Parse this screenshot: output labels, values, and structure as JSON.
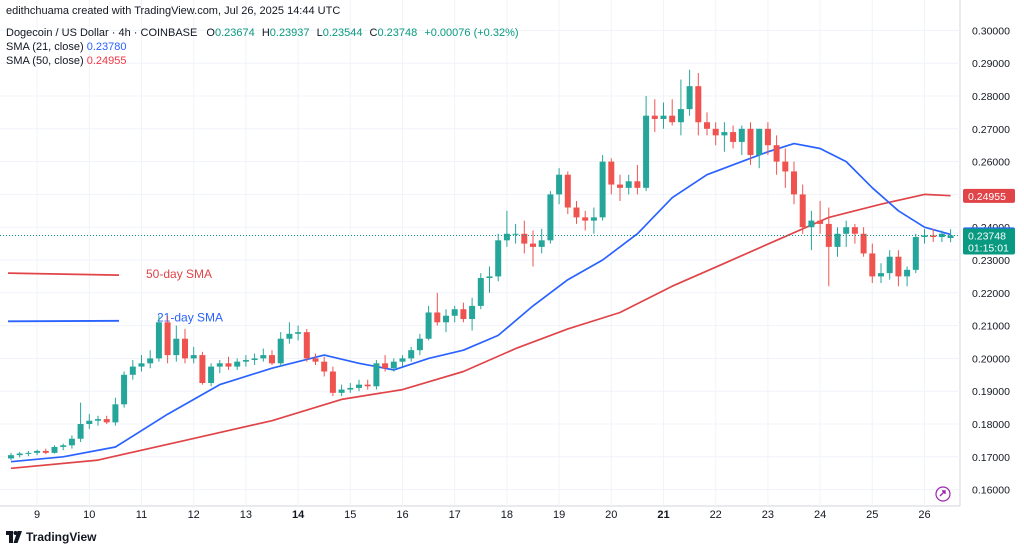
{
  "header": {
    "author_line": "edithchuama created with TradingView.com, Jul 26, 2025 14:44 UTC",
    "symbol": "Dogecoin / US Dollar · 4h · COINBASE",
    "ohlc": {
      "o_label": "O",
      "o": "0.23674",
      "h_label": "H",
      "h": "0.23937",
      "l_label": "L",
      "l": "0.23544",
      "c_label": "C",
      "c": "0.23748",
      "change": "+0.00076 (+0.32%)"
    },
    "sma21_label": "SMA (21, close)",
    "sma21_value": "0.23780",
    "sma50_label": "SMA (50, close)",
    "sma50_value": "0.24955"
  },
  "footer": {
    "brand": "TradingView",
    "brand_icon": "tradingview-logo-icon"
  },
  "colors": {
    "up": "#26a69a",
    "down": "#ef5350",
    "sma21": "#2962ff",
    "sma50": "#e04448",
    "grid": "#f0f3fa",
    "axis_text": "#131722",
    "last_price": "#089981"
  },
  "chart_data": {
    "type": "candlestick",
    "y_axis": {
      "min": 0.155,
      "max": 0.305,
      "ticks": [
        "0.30000",
        "0.29000",
        "0.28000",
        "0.27000",
        "0.26000",
        "0.25000",
        "0.24000",
        "0.23000",
        "0.22000",
        "0.21000",
        "0.20000",
        "0.19000",
        "0.18000",
        "0.17000",
        "0.16000"
      ]
    },
    "x_axis": {
      "ticks": [
        {
          "label": "9",
          "bar": 3
        },
        {
          "label": "10",
          "bar": 9
        },
        {
          "label": "11",
          "bar": 15
        },
        {
          "label": "12",
          "bar": 21
        },
        {
          "label": "13",
          "bar": 27
        },
        {
          "label": "14",
          "bar": 33
        },
        {
          "label": "15",
          "bar": 39
        },
        {
          "label": "16",
          "bar": 45
        },
        {
          "label": "17",
          "bar": 51
        },
        {
          "label": "18",
          "bar": 57
        },
        {
          "label": "19",
          "bar": 63
        },
        {
          "label": "20",
          "bar": 69
        },
        {
          "label": "21",
          "bar": 75
        },
        {
          "label": "22",
          "bar": 81
        },
        {
          "label": "23",
          "bar": 87
        },
        {
          "label": "24",
          "bar": 93
        },
        {
          "label": "25",
          "bar": 99
        },
        {
          "label": "26",
          "bar": 105
        }
      ],
      "bold": [
        "14",
        "21"
      ]
    },
    "grid": true,
    "price_labels": {
      "sma50": "0.24955",
      "sma21": "0.23780",
      "last": "0.23748",
      "countdown": "01:15:01"
    },
    "annotations": [
      {
        "text": "50-day SMA",
        "color": "#e04448"
      },
      {
        "text": "21-day SMA",
        "color": "#2962ff"
      }
    ],
    "legend_lines": [
      {
        "series": "sma50",
        "value": 0.226
      },
      {
        "series": "sma21",
        "value": 0.2113
      }
    ],
    "candles": [
      [
        0.1695,
        0.1712,
        0.169,
        0.1705
      ],
      [
        0.1705,
        0.1715,
        0.1698,
        0.171
      ],
      [
        0.171,
        0.1718,
        0.1702,
        0.1712
      ],
      [
        0.1712,
        0.1722,
        0.1705,
        0.1718
      ],
      [
        0.1718,
        0.1725,
        0.1708,
        0.1712
      ],
      [
        0.1712,
        0.1735,
        0.171,
        0.173
      ],
      [
        0.173,
        0.174,
        0.172,
        0.1735
      ],
      [
        0.1735,
        0.1765,
        0.1725,
        0.1755
      ],
      [
        0.1755,
        0.1865,
        0.1745,
        0.18
      ],
      [
        0.18,
        0.183,
        0.1785,
        0.181
      ],
      [
        0.181,
        0.1825,
        0.1795,
        0.1815
      ],
      [
        0.1815,
        0.1825,
        0.18,
        0.1805
      ],
      [
        0.1805,
        0.188,
        0.1795,
        0.186
      ],
      [
        0.186,
        0.196,
        0.185,
        0.195
      ],
      [
        0.195,
        0.1995,
        0.1935,
        0.1975
      ],
      [
        0.1975,
        0.201,
        0.196,
        0.1985
      ],
      [
        0.1985,
        0.2025,
        0.197,
        0.2
      ],
      [
        0.2,
        0.213,
        0.199,
        0.211
      ],
      [
        0.211,
        0.213,
        0.1985,
        0.201
      ],
      [
        0.201,
        0.21,
        0.199,
        0.206
      ],
      [
        0.206,
        0.209,
        0.1985,
        0.2
      ],
      [
        0.2,
        0.2035,
        0.1985,
        0.201
      ],
      [
        0.201,
        0.202,
        0.192,
        0.1925
      ],
      [
        0.1925,
        0.1985,
        0.1915,
        0.1975
      ],
      [
        0.1975,
        0.1995,
        0.1955,
        0.1985
      ],
      [
        0.1985,
        0.2005,
        0.1965,
        0.1975
      ],
      [
        0.1975,
        0.2,
        0.1965,
        0.199
      ],
      [
        0.199,
        0.201,
        0.1975,
        0.1995
      ],
      [
        0.1995,
        0.2015,
        0.198,
        0.2
      ],
      [
        0.2,
        0.203,
        0.199,
        0.201
      ],
      [
        0.201,
        0.2025,
        0.198,
        0.1985
      ],
      [
        0.1985,
        0.208,
        0.1975,
        0.206
      ],
      [
        0.206,
        0.211,
        0.2045,
        0.2075
      ],
      [
        0.2075,
        0.21,
        0.2055,
        0.208
      ],
      [
        0.208,
        0.209,
        0.199,
        0.2
      ],
      [
        0.2,
        0.2015,
        0.198,
        0.199
      ],
      [
        0.199,
        0.2005,
        0.1945,
        0.196
      ],
      [
        0.196,
        0.1975,
        0.1885,
        0.1895
      ],
      [
        0.1895,
        0.192,
        0.1885,
        0.1905
      ],
      [
        0.1905,
        0.1925,
        0.1895,
        0.191
      ],
      [
        0.191,
        0.1935,
        0.19,
        0.192
      ],
      [
        0.192,
        0.1935,
        0.1905,
        0.1915
      ],
      [
        0.1915,
        0.1995,
        0.1905,
        0.1985
      ],
      [
        0.1985,
        0.201,
        0.196,
        0.197
      ],
      [
        0.197,
        0.2,
        0.196,
        0.199
      ],
      [
        0.199,
        0.201,
        0.1975,
        0.2
      ],
      [
        0.2,
        0.2035,
        0.199,
        0.2025
      ],
      [
        0.2025,
        0.2075,
        0.201,
        0.206
      ],
      [
        0.206,
        0.216,
        0.2055,
        0.214
      ],
      [
        0.214,
        0.22,
        0.21,
        0.211
      ],
      [
        0.211,
        0.215,
        0.208,
        0.213
      ],
      [
        0.213,
        0.216,
        0.211,
        0.215
      ],
      [
        0.215,
        0.217,
        0.211,
        0.212
      ],
      [
        0.212,
        0.2185,
        0.2085,
        0.216
      ],
      [
        0.216,
        0.226,
        0.215,
        0.2245
      ],
      [
        0.2245,
        0.228,
        0.22,
        0.225
      ],
      [
        0.225,
        0.238,
        0.2235,
        0.236
      ],
      [
        0.236,
        0.245,
        0.234,
        0.238
      ],
      [
        0.238,
        0.241,
        0.235,
        0.238
      ],
      [
        0.238,
        0.242,
        0.232,
        0.235
      ],
      [
        0.235,
        0.239,
        0.228,
        0.234
      ],
      [
        0.234,
        0.2395,
        0.232,
        0.236
      ],
      [
        0.236,
        0.251,
        0.235,
        0.25
      ],
      [
        0.25,
        0.258,
        0.247,
        0.256
      ],
      [
        0.256,
        0.257,
        0.244,
        0.246
      ],
      [
        0.246,
        0.248,
        0.241,
        0.243
      ],
      [
        0.243,
        0.245,
        0.239,
        0.242
      ],
      [
        0.242,
        0.246,
        0.238,
        0.243
      ],
      [
        0.243,
        0.262,
        0.242,
        0.26
      ],
      [
        0.26,
        0.261,
        0.25,
        0.253
      ],
      [
        0.253,
        0.256,
        0.248,
        0.252
      ],
      [
        0.252,
        0.256,
        0.25,
        0.254
      ],
      [
        0.254,
        0.259,
        0.25,
        0.252
      ],
      [
        0.252,
        0.28,
        0.251,
        0.274
      ],
      [
        0.274,
        0.279,
        0.269,
        0.273
      ],
      [
        0.273,
        0.278,
        0.27,
        0.274
      ],
      [
        0.274,
        0.279,
        0.271,
        0.272
      ],
      [
        0.272,
        0.285,
        0.268,
        0.276
      ],
      [
        0.276,
        0.288,
        0.274,
        0.283
      ],
      [
        0.283,
        0.287,
        0.268,
        0.272
      ],
      [
        0.272,
        0.275,
        0.268,
        0.27
      ],
      [
        0.27,
        0.272,
        0.265,
        0.268
      ],
      [
        0.268,
        0.272,
        0.263,
        0.269
      ],
      [
        0.269,
        0.271,
        0.264,
        0.266
      ],
      [
        0.266,
        0.271,
        0.262,
        0.27
      ],
      [
        0.27,
        0.272,
        0.259,
        0.262
      ],
      [
        0.262,
        0.27,
        0.258,
        0.27
      ],
      [
        0.27,
        0.272,
        0.262,
        0.265
      ],
      [
        0.265,
        0.268,
        0.256,
        0.26
      ],
      [
        0.26,
        0.264,
        0.252,
        0.257
      ],
      [
        0.257,
        0.26,
        0.247,
        0.25
      ],
      [
        0.25,
        0.253,
        0.238,
        0.24
      ],
      [
        0.24,
        0.245,
        0.233,
        0.242
      ],
      [
        0.242,
        0.248,
        0.238,
        0.241
      ],
      [
        0.241,
        0.246,
        0.222,
        0.234
      ],
      [
        0.234,
        0.24,
        0.231,
        0.238
      ],
      [
        0.238,
        0.242,
        0.234,
        0.24
      ],
      [
        0.24,
        0.241,
        0.235,
        0.238
      ],
      [
        0.238,
        0.24,
        0.231,
        0.232
      ],
      [
        0.232,
        0.235,
        0.223,
        0.225
      ],
      [
        0.225,
        0.229,
        0.223,
        0.226
      ],
      [
        0.226,
        0.233,
        0.224,
        0.231
      ],
      [
        0.231,
        0.233,
        0.222,
        0.225
      ],
      [
        0.225,
        0.228,
        0.222,
        0.227
      ],
      [
        0.227,
        0.238,
        0.226,
        0.237
      ],
      [
        0.237,
        0.2395,
        0.235,
        0.2375
      ],
      [
        0.2375,
        0.2395,
        0.2355,
        0.237
      ],
      [
        0.237,
        0.239,
        0.2355,
        0.238
      ],
      [
        0.2367,
        0.2394,
        0.2354,
        0.2375
      ]
    ],
    "sma21": [
      [
        0,
        0.1685
      ],
      [
        6,
        0.17
      ],
      [
        12,
        0.173
      ],
      [
        18,
        0.183
      ],
      [
        24,
        0.192
      ],
      [
        30,
        0.197
      ],
      [
        36,
        0.201
      ],
      [
        40,
        0.1985
      ],
      [
        44,
        0.1965
      ],
      [
        48,
        0.2
      ],
      [
        52,
        0.2025
      ],
      [
        56,
        0.207
      ],
      [
        60,
        0.216
      ],
      [
        64,
        0.224
      ],
      [
        68,
        0.23
      ],
      [
        72,
        0.238
      ],
      [
        76,
        0.249
      ],
      [
        80,
        0.256
      ],
      [
        84,
        0.26
      ],
      [
        87,
        0.263
      ],
      [
        90,
        0.2655
      ],
      [
        93,
        0.264
      ],
      [
        96,
        0.26
      ],
      [
        99,
        0.252
      ],
      [
        102,
        0.245
      ],
      [
        105,
        0.24
      ],
      [
        108,
        0.2378
      ]
    ],
    "sma50": [
      [
        0,
        0.1665
      ],
      [
        10,
        0.169
      ],
      [
        20,
        0.175
      ],
      [
        30,
        0.181
      ],
      [
        38,
        0.1875
      ],
      [
        45,
        0.1905
      ],
      [
        52,
        0.196
      ],
      [
        58,
        0.203
      ],
      [
        64,
        0.209
      ],
      [
        70,
        0.214
      ],
      [
        76,
        0.222
      ],
      [
        82,
        0.229
      ],
      [
        88,
        0.236
      ],
      [
        94,
        0.243
      ],
      [
        100,
        0.247
      ],
      [
        105,
        0.25
      ],
      [
        108,
        0.2496
      ]
    ]
  }
}
